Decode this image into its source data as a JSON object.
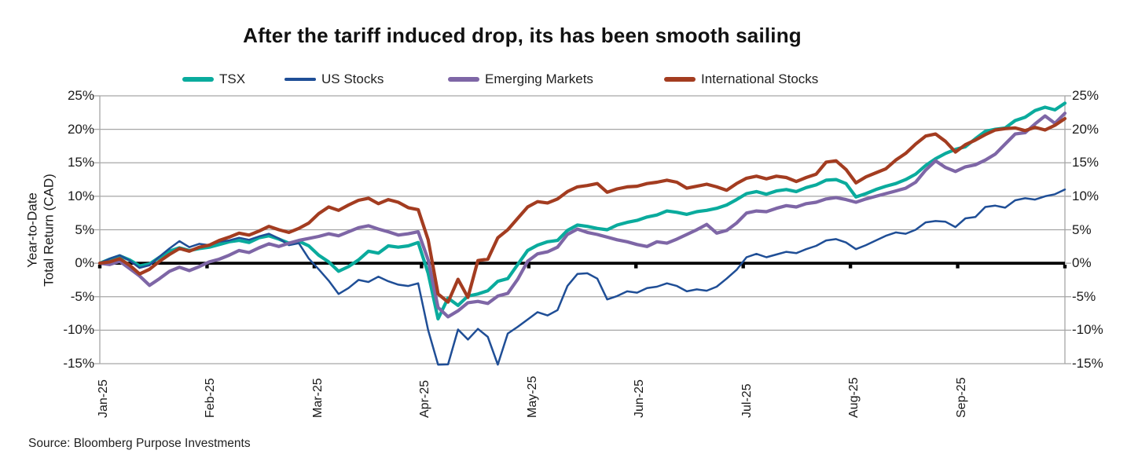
{
  "title": "After the tariff induced drop, its has been smooth sailing",
  "source": "Source: Bloomberg Purpose Investments",
  "legend": [
    {
      "label": "TSX",
      "color": "#0aab9d",
      "thickness": 6
    },
    {
      "label": "US Stocks",
      "color": "#1f4e96",
      "thickness": 4
    },
    {
      "label": "Emerging Markets",
      "color": "#7e66a6",
      "thickness": 6
    },
    {
      "label": "International Stocks",
      "color": "#a33c20",
      "thickness": 6
    }
  ],
  "y_axis": {
    "title_lines": [
      "Year-to-Date",
      "Total Return (CAD)"
    ],
    "ticks": [
      "25%",
      "20%",
      "15%",
      "10%",
      "5%",
      "0%",
      "-5%",
      "-10%",
      "-15%"
    ],
    "max": 25,
    "min": -15,
    "step": 5
  },
  "x_axis": {
    "labels": [
      "Jan-25",
      "Feb-25",
      "Mar-25",
      "Apr-25",
      "May-25",
      "Jun-25",
      "Jul-25",
      "Aug-25",
      "Sep-25"
    ]
  },
  "colors": {
    "gridline": "#a6a6a6",
    "zero_line": "#000000",
    "background": "#ffffff",
    "text": "#1a1a1a"
  },
  "chart_data": {
    "type": "line",
    "title": "After the tariff induced drop, its has been smooth sailing",
    "ylabel": "Year-to-Date Total Return (CAD)",
    "ylim": [
      -15,
      25
    ],
    "grid": "horizontal",
    "legend_position": "top",
    "x_unit": "Jan 2025 through Sep 2025, ~2 trading-day sampling, 98 points per series",
    "n_points": 98,
    "x_tick_months": [
      "Jan-25",
      "Feb-25",
      "Mar-25",
      "Apr-25",
      "May-25",
      "Jun-25",
      "Jul-25",
      "Aug-25",
      "Sep-25"
    ],
    "series": [
      {
        "name": "TSX",
        "color": "#0aab9d",
        "width": 4.2,
        "values": [
          0,
          0.6,
          1.1,
          0.5,
          -0.4,
          -0.1,
          0.9,
          1.8,
          2.3,
          1.9,
          2.2,
          2.4,
          2.8,
          3.2,
          3.4,
          3.1,
          3.8,
          4.1,
          3.6,
          3.0,
          3.3,
          2.6,
          1.2,
          0.2,
          -1.2,
          -0.5,
          0.5,
          1.8,
          1.5,
          2.6,
          2.4,
          2.6,
          3.1,
          -1.5,
          -8.3,
          -5.2,
          -6.3,
          -4.9,
          -4.6,
          -4.1,
          -2.7,
          -2.3,
          -0.2,
          1.9,
          2.7,
          3.2,
          3.4,
          4.9,
          5.7,
          5.5,
          5.2,
          5.0,
          5.7,
          6.1,
          6.4,
          6.9,
          7.2,
          7.8,
          7.6,
          7.3,
          7.7,
          7.9,
          8.2,
          8.7,
          9.5,
          10.4,
          10.7,
          10.3,
          10.8,
          11.0,
          10.7,
          11.3,
          11.7,
          12.4,
          12.5,
          11.9,
          9.9,
          10.4,
          11.0,
          11.5,
          11.9,
          12.5,
          13.3,
          14.6,
          15.6,
          16.4,
          17.0,
          17.4,
          18.6,
          19.7,
          20.0,
          20.2,
          21.3,
          21.8,
          22.8,
          23.3,
          22.9,
          23.9
        ]
      },
      {
        "name": "US Stocks",
        "color": "#1f4e96",
        "width": 2.5,
        "values": [
          0,
          0.7,
          1.2,
          0.4,
          -0.7,
          -0.3,
          1.0,
          2.2,
          3.3,
          2.4,
          2.9,
          2.7,
          3.2,
          3.4,
          3.8,
          3.5,
          4.0,
          4.4,
          3.7,
          2.7,
          3.0,
          0.7,
          -0.9,
          -2.6,
          -4.6,
          -3.7,
          -2.5,
          -2.8,
          -2.0,
          -2.7,
          -3.2,
          -3.4,
          -3.0,
          -10.0,
          -15.3,
          -15.1,
          -9.9,
          -11.4,
          -9.8,
          -11.0,
          -15.2,
          -10.5,
          -9.5,
          -8.4,
          -7.3,
          -7.8,
          -7.0,
          -3.4,
          -1.6,
          -1.5,
          -2.3,
          -5.4,
          -4.9,
          -4.2,
          -4.4,
          -3.7,
          -3.5,
          -3.0,
          -3.4,
          -4.2,
          -3.9,
          -4.1,
          -3.5,
          -2.3,
          -1.0,
          0.9,
          1.4,
          0.9,
          1.3,
          1.7,
          1.5,
          2.1,
          2.6,
          3.4,
          3.6,
          3.1,
          2.1,
          2.7,
          3.4,
          4.1,
          4.6,
          4.4,
          5.0,
          6.1,
          6.3,
          6.2,
          5.4,
          6.7,
          6.9,
          8.4,
          8.6,
          8.3,
          9.4,
          9.7,
          9.5,
          10.0,
          10.3,
          11.0
        ]
      },
      {
        "name": "Emerging Markets",
        "color": "#7e66a6",
        "width": 4.2,
        "values": [
          0,
          -0.2,
          0.3,
          -0.8,
          -1.9,
          -3.3,
          -2.3,
          -1.2,
          -0.6,
          -1.1,
          -0.5,
          0.2,
          0.6,
          1.2,
          1.9,
          1.6,
          2.3,
          2.9,
          2.5,
          3.0,
          3.4,
          3.7,
          4.0,
          4.4,
          4.1,
          4.7,
          5.3,
          5.6,
          5.1,
          4.7,
          4.2,
          4.4,
          4.7,
          0.5,
          -6.6,
          -8.0,
          -7.1,
          -5.9,
          -5.7,
          -6.0,
          -4.9,
          -4.5,
          -2.4,
          0.3,
          1.4,
          1.7,
          2.4,
          4.3,
          5.1,
          4.6,
          4.3,
          3.9,
          3.5,
          3.2,
          2.8,
          2.5,
          3.2,
          3.0,
          3.6,
          4.3,
          5.0,
          5.8,
          4.5,
          4.9,
          6.0,
          7.5,
          7.8,
          7.7,
          8.2,
          8.6,
          8.4,
          8.9,
          9.1,
          9.6,
          9.8,
          9.5,
          9.1,
          9.6,
          10.0,
          10.4,
          10.8,
          11.2,
          12.1,
          13.9,
          15.3,
          14.3,
          13.7,
          14.4,
          14.7,
          15.4,
          16.3,
          17.8,
          19.3,
          19.5,
          20.8,
          22.0,
          20.9,
          22.4
        ]
      },
      {
        "name": "International Stocks",
        "color": "#a33c20",
        "width": 4.2,
        "values": [
          0,
          0.2,
          0.7,
          -0.3,
          -1.6,
          -0.9,
          0.3,
          1.3,
          2.2,
          1.8,
          2.4,
          2.7,
          3.4,
          3.9,
          4.5,
          4.2,
          4.8,
          5.5,
          5.0,
          4.6,
          5.2,
          6.0,
          7.4,
          8.4,
          7.9,
          8.7,
          9.4,
          9.7,
          8.9,
          9.5,
          9.1,
          8.3,
          8.0,
          3.5,
          -4.6,
          -5.8,
          -2.4,
          -5.1,
          0.4,
          0.6,
          3.8,
          5.0,
          6.7,
          8.4,
          9.2,
          9.0,
          9.6,
          10.7,
          11.4,
          11.6,
          11.9,
          10.6,
          11.1,
          11.4,
          11.5,
          11.9,
          12.1,
          12.4,
          12.1,
          11.2,
          11.5,
          11.8,
          11.4,
          10.9,
          11.9,
          12.7,
          13.0,
          12.6,
          13.0,
          12.8,
          12.2,
          12.8,
          13.3,
          15.1,
          15.3,
          14.0,
          12.0,
          12.9,
          13.5,
          14.1,
          15.4,
          16.4,
          17.8,
          19.0,
          19.3,
          18.2,
          16.6,
          17.7,
          18.4,
          19.2,
          19.9,
          20.1,
          20.2,
          19.8,
          20.3,
          19.9,
          20.6,
          21.6
        ]
      }
    ]
  }
}
